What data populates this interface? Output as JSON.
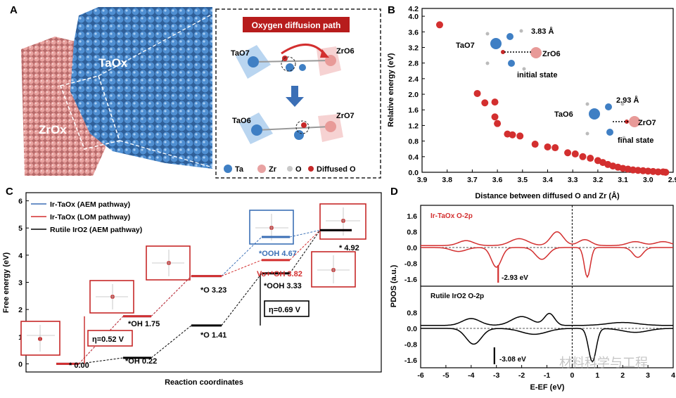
{
  "panel_a": {
    "label": "A",
    "zrox": "ZrOx",
    "taox": "TaOx",
    "inset_title": "Oxygen diffusion path",
    "top_left": "TaO7",
    "top_right": "ZrO6",
    "bottom_left": "TaO6",
    "bottom_right": "ZrO7",
    "legend": [
      "Ta",
      "Zr",
      "O",
      "Diffused O"
    ],
    "colors": {
      "ta": "#3f7fc4",
      "zr": "#e8a2a2",
      "o": "#c8c8c8",
      "diffused": "#c62828",
      "banner": "#b71c1c"
    }
  },
  "panel_b": {
    "label": "B",
    "chart_data": {
      "type": "scatter",
      "xlabel": "Distance between diffused O and Zr (Å)",
      "ylabel": "Relative energy (eV)",
      "xlim": [
        3.9,
        2.9
      ],
      "ylim": [
        0,
        4.2
      ],
      "xticks": [
        3.9,
        3.8,
        3.7,
        3.6,
        3.5,
        3.4,
        3.3,
        3.2,
        3.1,
        3.0,
        2.9
      ],
      "yticks": [
        0.0,
        0.4,
        0.8,
        1.2,
        1.6,
        2.0,
        2.4,
        2.8,
        3.2,
        3.6,
        4.0,
        4.2
      ],
      "x": [
        3.83,
        3.68,
        3.65,
        3.61,
        3.61,
        3.6,
        3.56,
        3.54,
        3.51,
        3.45,
        3.4,
        3.37,
        3.32,
        3.29,
        3.26,
        3.23,
        3.2,
        3.18,
        3.16,
        3.14,
        3.12,
        3.1,
        3.08,
        3.06,
        3.04,
        3.02,
        3.0,
        2.98,
        2.96,
        2.94,
        2.93
      ],
      "y": [
        3.78,
        2.02,
        1.78,
        1.8,
        1.42,
        1.25,
        0.98,
        0.96,
        0.93,
        0.72,
        0.65,
        0.63,
        0.5,
        0.47,
        0.4,
        0.36,
        0.3,
        0.25,
        0.2,
        0.16,
        0.13,
        0.1,
        0.08,
        0.06,
        0.05,
        0.04,
        0.03,
        0.02,
        0.01,
        0.01,
        0.0
      ],
      "point_color": "#d32f2f"
    },
    "initial": {
      "dist": "3.83 Å",
      "left": "TaO7",
      "right": "ZrO6",
      "state": "initial state"
    },
    "final": {
      "dist": "2.93 Å",
      "left": "TaO6",
      "right": "ZrO7",
      "state": "final state"
    }
  },
  "panel_c": {
    "label": "C",
    "chart_data": {
      "type": "line",
      "xlabel": "Reaction coordinates",
      "ylabel": "Free energy (eV)",
      "ylim": [
        -0.3,
        6.3
      ],
      "yticks": [
        0,
        1,
        2,
        3,
        4,
        5,
        6
      ],
      "series": [
        {
          "name": "Ir-TaOx (AEM pathway)",
          "color": "#3b6fb6",
          "values": [
            0.0,
            1.75,
            3.23,
            4.67,
            4.92
          ]
        },
        {
          "name": "Ir-TaOx (LOM pathway)",
          "color": "#d32f2f",
          "values": [
            0.0,
            1.75,
            3.23,
            3.82,
            4.92
          ]
        },
        {
          "name": "Rutile IrO2 (AEM pathway)",
          "color": "#000000",
          "values": [
            0.22,
            1.41,
            3.33,
            4.92
          ]
        }
      ]
    },
    "legend": [
      "Ir-TaOx (AEM pathway)",
      "Ir-TaOx (LOM pathway)",
      "Rutile IrO2 (AEM pathway)"
    ],
    "labels": {
      "s0": "* 0.00",
      "oh1": "*OH 1.75",
      "o1": "*O 3.23",
      "ooh1": "*OOH 4.67",
      "vo": "Vo+*OH 3.82",
      "end": "* 4.92",
      "oh2": "*OH 0.22",
      "o2": "*O 1.41",
      "ooh2": "*OOH 3.33",
      "eta1": "η=0.52 V",
      "eta2": "η=0.69 V"
    }
  },
  "panel_d": {
    "label": "D",
    "chart_data": {
      "type": "line",
      "xlabel": "E-EF (eV)",
      "ylabel": "PDOS (a.u.)",
      "xlim": [
        -6,
        4
      ],
      "xticks": [
        -6,
        -5,
        -4,
        -3,
        -2,
        -1,
        0,
        1,
        2,
        3,
        4
      ],
      "yticks_top": [
        1.6,
        0.8,
        0.0,
        -0.8,
        -1.6
      ],
      "yticks_bottom": [
        0.8,
        0.0,
        -0.8,
        -1.6
      ],
      "series": [
        {
          "name": "Ir-TaOx O-2p",
          "color": "#d32f2f",
          "center": -2.93
        },
        {
          "name": "Rutile IrO2 O-2p",
          "color": "#000000",
          "center": -3.08
        }
      ]
    },
    "top_label": "Ir-TaOx O-2p",
    "top_center": "-2.93 eV",
    "bottom_label": "Rutile IrO2 O-2p",
    "bottom_center": "-3.08 eV",
    "watermark": "材料科学与工程"
  }
}
